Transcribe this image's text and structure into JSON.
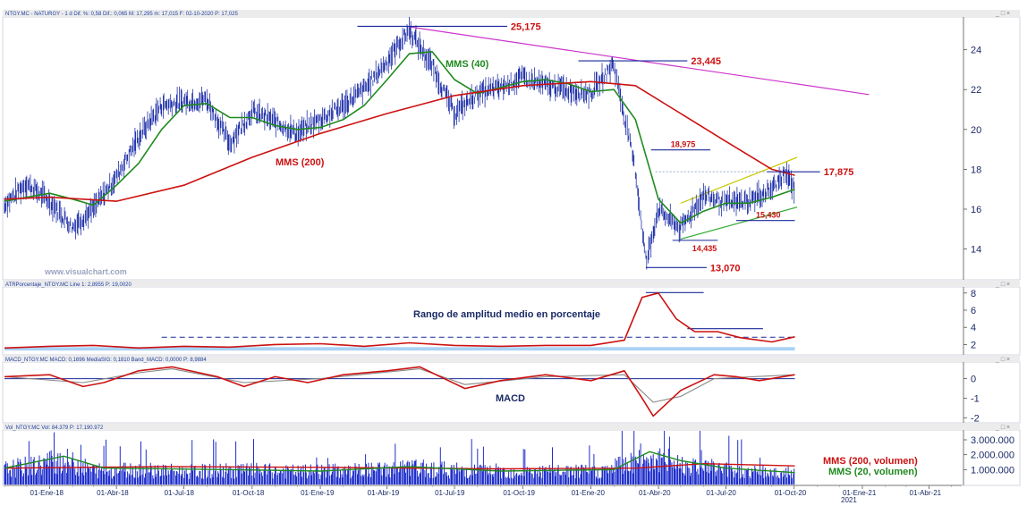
{
  "chart_data": [
    {
      "type": "line",
      "panel": "price",
      "header": "NTGY.MC - NATURGY - 1 d Dif. %: 0,58 Dif.: 0,065 M: 17,295 m: 17,015 F: 02-10-2020 P: 17,025",
      "x_ticks": [
        "01-Ene-18",
        "01-Abr-18",
        "01-Jul-18",
        "01-Oct-18",
        "01-Ene-19",
        "01-Abr-19",
        "01-Jul-19",
        "01-Oct-19",
        "01-Ene-20",
        "01-Abr-20",
        "01-Jul-20",
        "01-Oct-20",
        "01-Ene-21",
        "01-Abr-21"
      ],
      "y_ticks": [
        "24",
        "22",
        "20",
        "18",
        "16",
        "14"
      ],
      "ylim": [
        12.5,
        25.6
      ],
      "watermark": "www.visualchart.com",
      "series": [
        {
          "name": "MMS (40)",
          "color": "#1f8a1f",
          "points": [
            [
              "2017-11-01",
              16.4
            ],
            [
              "2018-01-01",
              16.8
            ],
            [
              "2018-02-01",
              16.5
            ],
            [
              "2018-03-01",
              16.2
            ],
            [
              "2018-04-01",
              17.2
            ],
            [
              "2018-05-01",
              18.3
            ],
            [
              "2018-06-01",
              20.0
            ],
            [
              "2018-07-01",
              21.2
            ],
            [
              "2018-08-01",
              21.3
            ],
            [
              "2018-09-01",
              20.6
            ],
            [
              "2018-10-01",
              20.6
            ],
            [
              "2018-11-01",
              20.2
            ],
            [
              "2018-12-01",
              20.0
            ],
            [
              "2019-01-01",
              20.1
            ],
            [
              "2019-02-01",
              20.5
            ],
            [
              "2019-03-01",
              21.2
            ],
            [
              "2019-04-01",
              22.5
            ],
            [
              "2019-05-01",
              23.8
            ],
            [
              "2019-06-01",
              23.9
            ],
            [
              "2019-07-01",
              22.5
            ],
            [
              "2019-08-01",
              21.8
            ],
            [
              "2019-09-01",
              22.1
            ],
            [
              "2019-10-01",
              22.4
            ],
            [
              "2019-11-01",
              22.5
            ],
            [
              "2019-12-01",
              22.3
            ],
            [
              "2020-01-01",
              21.9
            ],
            [
              "2020-02-01",
              22.0
            ],
            [
              "2020-03-01",
              20.5
            ],
            [
              "2020-04-01",
              16.5
            ],
            [
              "2020-05-01",
              15.3
            ],
            [
              "2020-06-01",
              15.9
            ],
            [
              "2020-07-01",
              16.3
            ],
            [
              "2020-08-01",
              16.3
            ],
            [
              "2020-09-01",
              16.6
            ],
            [
              "2020-10-02",
              17.0
            ]
          ]
        },
        {
          "name": "MMS (200)",
          "color": "#cc1111",
          "points": [
            [
              "2017-11-01",
              16.5
            ],
            [
              "2018-01-01",
              16.6
            ],
            [
              "2018-04-01",
              16.4
            ],
            [
              "2018-07-01",
              17.2
            ],
            [
              "2018-10-01",
              18.6
            ],
            [
              "2019-01-01",
              19.8
            ],
            [
              "2019-04-01",
              20.8
            ],
            [
              "2019-07-01",
              21.7
            ],
            [
              "2019-10-01",
              22.2
            ],
            [
              "2020-01-01",
              22.4
            ],
            [
              "2020-03-01",
              22.2
            ],
            [
              "2020-05-01",
              20.8
            ],
            [
              "2020-07-01",
              19.4
            ],
            [
              "2020-09-01",
              18.0
            ],
            [
              "2020-10-02",
              17.7
            ]
          ]
        },
        {
          "name": "Precio",
          "color": "#1a2a99",
          "points": [
            [
              "2017-11-01",
              16.2
            ],
            [
              "2017-12-01",
              17.3
            ],
            [
              "2018-01-01",
              16.4
            ],
            [
              "2018-02-01",
              15.1
            ],
            [
              "2018-03-01",
              16.0
            ],
            [
              "2018-04-01",
              17.6
            ],
            [
              "2018-05-01",
              19.6
            ],
            [
              "2018-06-01",
              21.2
            ],
            [
              "2018-07-01",
              21.4
            ],
            [
              "2018-08-01",
              21.5
            ],
            [
              "2018-09-01",
              19.3
            ],
            [
              "2018-10-01",
              20.9
            ],
            [
              "2018-11-01",
              20.4
            ],
            [
              "2018-12-01",
              19.8
            ],
            [
              "2019-01-01",
              20.5
            ],
            [
              "2019-02-01",
              21.2
            ],
            [
              "2019-03-01",
              22.0
            ],
            [
              "2019-04-01",
              23.4
            ],
            [
              "2019-05-01",
              25.0
            ],
            [
              "2019-06-01",
              23.2
            ],
            [
              "2019-07-01",
              20.8
            ],
            [
              "2019-08-01",
              21.8
            ],
            [
              "2019-09-01",
              22.1
            ],
            [
              "2019-10-01",
              22.6
            ],
            [
              "2019-11-01",
              22.2
            ],
            [
              "2019-12-01",
              22.0
            ],
            [
              "2020-01-01",
              21.8
            ],
            [
              "2020-02-01",
              23.3
            ],
            [
              "2020-03-01",
              18.0
            ],
            [
              "2020-03-16",
              13.3
            ],
            [
              "2020-04-01",
              16.0
            ],
            [
              "2020-05-01",
              15.0
            ],
            [
              "2020-06-01",
              16.7
            ],
            [
              "2020-07-01",
              16.3
            ],
            [
              "2020-08-01",
              16.4
            ],
            [
              "2020-09-01",
              17.0
            ],
            [
              "2020-09-20",
              17.8
            ],
            [
              "2020-10-02",
              17.0
            ]
          ]
        }
      ],
      "levels": [
        {
          "label": "25,175",
          "value": 25.175,
          "x_from": "2019-02-20",
          "x_to": "2019-09-10",
          "color": "#1a2a99",
          "label_color": "#cc1111"
        },
        {
          "label": "23,445",
          "value": 23.445,
          "x_from": "2019-12-15",
          "x_to": "2020-05-10",
          "color": "#1a2a99",
          "label_color": "#cc1111"
        },
        {
          "label": "18,975",
          "value": 18.975,
          "x_from": "2020-03-22",
          "x_to": "2020-06-10",
          "color": "#1a2a99",
          "label_color": "#cc1111"
        },
        {
          "label": "17,875",
          "value": 17.875,
          "x_from": "2020-08-25",
          "x_to": "2020-11-05",
          "color": "#1a2a99",
          "label_color": "#cc1111"
        },
        {
          "label": "14,435",
          "value": 14.435,
          "x_from": "2020-04-20",
          "x_to": "2020-06-20",
          "color": "#1a2a99",
          "label_color": "#cc1111"
        },
        {
          "label": "15,430",
          "value": 15.43,
          "x_from": "2020-07-15",
          "x_to": "2020-10-02",
          "color": "#1a2a99",
          "label_color": "#cc1111"
        },
        {
          "label": "13,070",
          "value": 13.07,
          "x_from": "2020-03-15",
          "x_to": "2020-06-05",
          "color": "#1a2a99",
          "label_color": "#cc1111"
        }
      ],
      "trendlines": [
        {
          "color": "#cc33cc",
          "from": [
            "2019-05-01",
            25.15
          ],
          "to": [
            "2021-01-10",
            21.75
          ]
        },
        {
          "color": "#c8c800",
          "from": [
            "2020-05-01",
            16.3
          ],
          "to": [
            "2020-10-05",
            18.6
          ]
        },
        {
          "color": "#33aa33",
          "from": [
            "2020-05-01",
            14.5
          ],
          "to": [
            "2020-10-05",
            16.1
          ]
        }
      ],
      "annotations": {
        "mms40": "MMS (40)",
        "mms200": "MMS (200)"
      }
    },
    {
      "type": "line",
      "panel": "atr",
      "header": "ATRPorcentaje_NTGY.MC Line 1: 2,8955 P: 19,0020",
      "title": "Rango de amplitud medio en porcentaje",
      "y_ticks": [
        "8",
        "6",
        "4",
        "2"
      ],
      "ylim": [
        0.9,
        8.6
      ],
      "series": [
        {
          "name": "ATR %",
          "color": "#cc1111",
          "points": [
            [
              "2017-11-01",
              1.6
            ],
            [
              "2018-01-01",
              1.8
            ],
            [
              "2018-03-01",
              1.9
            ],
            [
              "2018-05-01",
              1.6
            ],
            [
              "2018-07-01",
              1.8
            ],
            [
              "2018-09-01",
              1.7
            ],
            [
              "2018-11-01",
              2.0
            ],
            [
              "2019-01-01",
              2.1
            ],
            [
              "2019-03-01",
              1.8
            ],
            [
              "2019-05-01",
              2.2
            ],
            [
              "2019-07-01",
              1.9
            ],
            [
              "2019-09-01",
              1.8
            ],
            [
              "2019-11-01",
              1.9
            ],
            [
              "2020-01-01",
              1.9
            ],
            [
              "2020-02-15",
              2.5
            ],
            [
              "2020-03-10",
              7.5
            ],
            [
              "2020-04-01",
              8.0
            ],
            [
              "2020-04-25",
              5.0
            ],
            [
              "2020-05-20",
              3.5
            ],
            [
              "2020-06-20",
              3.5
            ],
            [
              "2020-07-20",
              2.8
            ],
            [
              "2020-09-01",
              2.3
            ],
            [
              "2020-10-02",
              2.9
            ]
          ]
        }
      ],
      "levels": [
        {
          "value": 8.05,
          "x_from": "2020-03-15",
          "x_to": "2020-06-01",
          "color": "#1a2a99"
        },
        {
          "value": 3.85,
          "x_from": "2020-05-10",
          "x_to": "2020-08-20",
          "color": "#1a2a99"
        },
        {
          "value": 2.85,
          "x_from": "2018-06-01",
          "x_to": "2020-10-02",
          "color": "#1a2a99",
          "dashed": true
        }
      ]
    },
    {
      "type": "line",
      "panel": "macd",
      "header": "MACD_NTGY.MC MACD: 0,1696 MediaSIG: 0,1810 Band_MACD: 0,0000 P: 8,9884",
      "title": "MACD",
      "y_ticks": [
        "0",
        "-1",
        "-2"
      ],
      "ylim": [
        -2.2,
        0.8
      ],
      "series": [
        {
          "name": "MACD",
          "color": "#cc1111",
          "points": [
            [
              "2017-11-01",
              0.1
            ],
            [
              "2018-01-01",
              0.2
            ],
            [
              "2018-02-15",
              -0.4
            ],
            [
              "2018-03-15",
              -0.2
            ],
            [
              "2018-05-01",
              0.4
            ],
            [
              "2018-06-15",
              0.6
            ],
            [
              "2018-08-15",
              0.1
            ],
            [
              "2018-09-20",
              -0.4
            ],
            [
              "2018-11-01",
              0.1
            ],
            [
              "2018-12-15",
              -0.2
            ],
            [
              "2019-02-01",
              0.2
            ],
            [
              "2019-04-01",
              0.4
            ],
            [
              "2019-05-15",
              0.6
            ],
            [
              "2019-07-15",
              -0.5
            ],
            [
              "2019-09-01",
              -0.1
            ],
            [
              "2019-11-01",
              0.2
            ],
            [
              "2020-01-01",
              -0.1
            ],
            [
              "2020-02-15",
              0.4
            ],
            [
              "2020-03-10",
              -1.0
            ],
            [
              "2020-03-25",
              -1.9
            ],
            [
              "2020-05-01",
              -0.6
            ],
            [
              "2020-06-15",
              0.2
            ],
            [
              "2020-07-15",
              0.1
            ],
            [
              "2020-08-15",
              -0.1
            ],
            [
              "2020-10-02",
              0.2
            ]
          ]
        },
        {
          "name": "MediaSIG",
          "color": "#888888",
          "points": [
            [
              "2017-11-01",
              0.1
            ],
            [
              "2018-02-15",
              -0.2
            ],
            [
              "2018-05-01",
              0.3
            ],
            [
              "2018-06-15",
              0.5
            ],
            [
              "2018-09-20",
              -0.2
            ],
            [
              "2019-01-01",
              0.0
            ],
            [
              "2019-05-15",
              0.5
            ],
            [
              "2019-07-15",
              -0.3
            ],
            [
              "2019-11-01",
              0.1
            ],
            [
              "2020-02-15",
              0.2
            ],
            [
              "2020-03-25",
              -1.2
            ],
            [
              "2020-05-01",
              -0.9
            ],
            [
              "2020-06-15",
              0.0
            ],
            [
              "2020-10-02",
              0.2
            ]
          ]
        }
      ],
      "levels": [
        {
          "value": 0,
          "x_from": "2017-11-01",
          "x_to": "2020-10-02",
          "color": "#1a2a99"
        }
      ]
    },
    {
      "type": "bar",
      "panel": "volume",
      "header": "Vol_NTGY.MC Vol: 84.379 P: 17.190.972",
      "y_ticks": [
        "3.000.000",
        "2.000.000",
        "1.000.000"
      ],
      "ylim": [
        0,
        3600000
      ],
      "annotations": [
        "MMS (200, volumen)",
        "MMS (20, volumen)"
      ],
      "volume_profile": [
        [
          "2017-11-01",
          1200000
        ],
        [
          "2017-12-15",
          1500000
        ],
        [
          "2018-01-15",
          2000000
        ],
        [
          "2018-03-01",
          1100000
        ],
        [
          "2018-05-01",
          1200000
        ],
        [
          "2018-07-01",
          1000000
        ],
        [
          "2018-09-15",
          1100000
        ],
        [
          "2018-12-01",
          1000000
        ],
        [
          "2019-03-01",
          1100000
        ],
        [
          "2019-05-01",
          1300000
        ],
        [
          "2019-07-15",
          1100000
        ],
        [
          "2019-10-01",
          1000000
        ],
        [
          "2020-01-15",
          1000000
        ],
        [
          "2020-03-15",
          2200000
        ],
        [
          "2020-04-15",
          1800000
        ],
        [
          "2020-06-01",
          1400000
        ],
        [
          "2020-08-01",
          1000000
        ],
        [
          "2020-10-02",
          900000
        ]
      ],
      "series": [
        {
          "name": "MMS (200, volumen)",
          "color": "#cc1111",
          "points": [
            [
              "2017-11-01",
              1100000
            ],
            [
              "2018-06-01",
              1200000
            ],
            [
              "2019-01-01",
              1150000
            ],
            [
              "2019-09-01",
              1050000
            ],
            [
              "2020-03-01",
              1100000
            ],
            [
              "2020-06-01",
              1400000
            ],
            [
              "2020-10-02",
              1250000
            ]
          ]
        },
        {
          "name": "MMS (20, volumen)",
          "color": "#1f8a1f",
          "points": [
            [
              "2017-11-01",
              1100000
            ],
            [
              "2018-01-20",
              1900000
            ],
            [
              "2018-03-15",
              1100000
            ],
            [
              "2018-09-01",
              1000000
            ],
            [
              "2019-01-01",
              900000
            ],
            [
              "2019-05-01",
              1200000
            ],
            [
              "2019-09-01",
              900000
            ],
            [
              "2020-02-01",
              1000000
            ],
            [
              "2020-03-20",
              2200000
            ],
            [
              "2020-05-01",
              1600000
            ],
            [
              "2020-07-01",
              1100000
            ],
            [
              "2020-10-02",
              800000
            ]
          ]
        }
      ]
    }
  ],
  "x_tick_dates": [
    "2018-01-01",
    "2018-04-01",
    "2018-07-01",
    "2018-10-01",
    "2019-01-01",
    "2019-04-01",
    "2019-07-01",
    "2019-10-01",
    "2020-01-01",
    "2020-04-01",
    "2020-07-01",
    "2020-10-01",
    "2021-01-01",
    "2021-04-01"
  ],
  "x_domain": [
    "2017-11-01",
    "2021-05-15"
  ],
  "year_label": "2021",
  "window_buttons": "_ □ ×"
}
